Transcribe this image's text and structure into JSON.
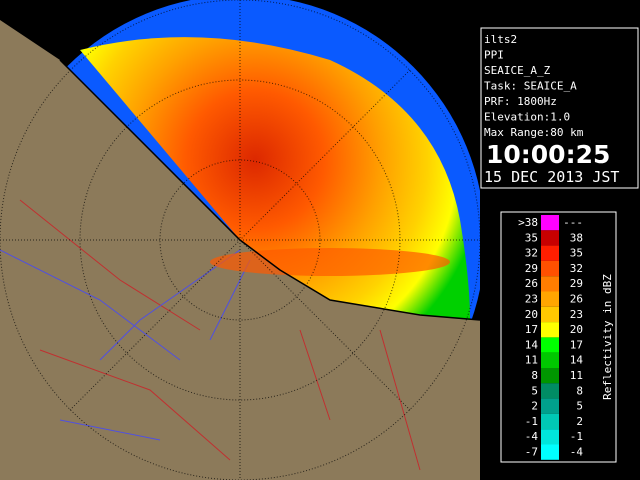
{
  "info": {
    "lines": [
      "ilts2",
      "PPI",
      "SEAICE_A_Z",
      "Task: SEAICE_A",
      "PRF: 1800Hz",
      "Elevation:1.0",
      "Max Range:80 km"
    ],
    "time": "10:00:25",
    "date": "15 DEC 2013 JST"
  },
  "legend": {
    "title": "Reflectivity in dBZ",
    "rows": [
      {
        "low": ">38",
        "high": "---",
        "color": "#ff00ff"
      },
      {
        "low": "35",
        "high": "38",
        "color": "#c80000"
      },
      {
        "low": "32",
        "high": "35",
        "color": "#ff1e00"
      },
      {
        "low": "29",
        "high": "32",
        "color": "#ff5000"
      },
      {
        "low": "26",
        "high": "29",
        "color": "#ff7d00"
      },
      {
        "low": "23",
        "high": "26",
        "color": "#ffa500"
      },
      {
        "low": "20",
        "high": "23",
        "color": "#ffc800"
      },
      {
        "low": "17",
        "high": "20",
        "color": "#ffff00"
      },
      {
        "low": "14",
        "high": "17",
        "color": "#00ff00"
      },
      {
        "low": "11",
        "high": "14",
        "color": "#00c800"
      },
      {
        "low": "8",
        "high": "11",
        "color": "#009600"
      },
      {
        "low": "5",
        "high": "8",
        "color": "#008c64"
      },
      {
        "low": "2",
        "high": "5",
        "color": "#00a08c"
      },
      {
        "low": "-1",
        "high": "2",
        "color": "#00c8b4"
      },
      {
        "low": "-4",
        "high": "-1",
        "color": "#00e6dc"
      },
      {
        "low": "-7",
        "high": "-4",
        "color": "#00ffff"
      }
    ]
  }
}
